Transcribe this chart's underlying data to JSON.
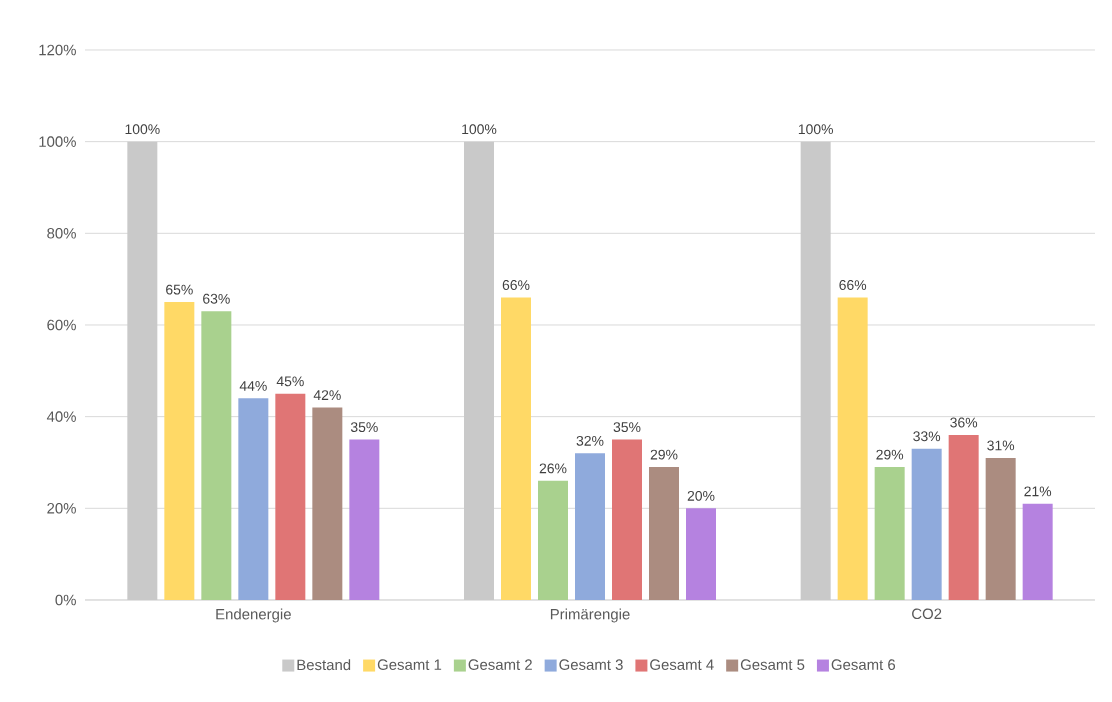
{
  "chart_data": {
    "type": "bar",
    "categories": [
      "Endenergie",
      "Primärengie",
      "CO2"
    ],
    "series": [
      {
        "name": "Bestand",
        "color": "#c9c9c9",
        "values": [
          100,
          100,
          100
        ],
        "value_labels": [
          "100%",
          "100%",
          "100%"
        ]
      },
      {
        "name": "Gesamt 1",
        "color": "#ffd966",
        "values": [
          65,
          66,
          66
        ],
        "value_labels": [
          "65%",
          "66%",
          "66%"
        ]
      },
      {
        "name": "Gesamt 2",
        "color": "#a9d18e",
        "values": [
          63,
          26,
          29
        ],
        "value_labels": [
          "63%",
          "26%",
          "29%"
        ]
      },
      {
        "name": "Gesamt 3",
        "color": "#8faadc",
        "values": [
          44,
          32,
          33
        ],
        "value_labels": [
          "44%",
          "32%",
          "33%"
        ]
      },
      {
        "name": "Gesamt 4",
        "color": "#e07575",
        "values": [
          45,
          35,
          36
        ],
        "value_labels": [
          "45%",
          "35%",
          "36%"
        ]
      },
      {
        "name": "Gesamt 5",
        "color": "#ab8c80",
        "values": [
          42,
          29,
          31
        ],
        "value_labels": [
          "42%",
          "29%",
          "31%"
        ]
      },
      {
        "name": "Gesamt 6",
        "color": "#b582e0",
        "values": [
          35,
          20,
          21
        ],
        "value_labels": [
          "35%",
          "20%",
          "21%"
        ]
      }
    ],
    "ylim": [
      0,
      120
    ],
    "yticks": [
      {
        "value": 0,
        "label": "0%"
      },
      {
        "value": 20,
        "label": "20%"
      },
      {
        "value": 40,
        "label": "40%"
      },
      {
        "value": 60,
        "label": "60%"
      },
      {
        "value": 80,
        "label": "80%"
      },
      {
        "value": 100,
        "label": "100%"
      },
      {
        "value": 120,
        "label": "120%"
      }
    ],
    "grid": "y",
    "legend": "bottom"
  }
}
